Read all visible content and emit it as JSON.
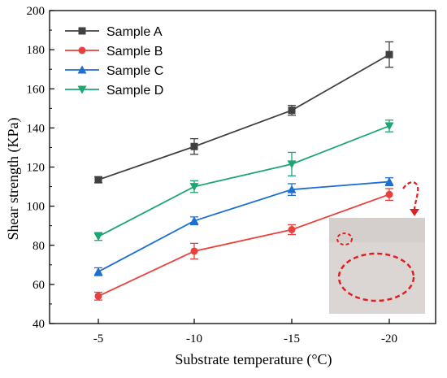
{
  "chart_data": {
    "type": "line",
    "xlabel": "Substrate temperature (°C)",
    "ylabel": "Shear strength (KPa)",
    "categories": [
      "-5",
      "-10",
      "-15",
      "-20"
    ],
    "ylim": [
      40,
      200
    ],
    "yticks": [
      40,
      60,
      80,
      100,
      120,
      140,
      160,
      180,
      200
    ],
    "legend_position": "top-left",
    "grid": false,
    "series": [
      {
        "name": "Sample A",
        "marker": "square",
        "color": "#404040",
        "values": [
          113.5,
          130.5,
          149,
          177.5
        ],
        "errors": [
          1.5,
          4,
          2.5,
          6.5
        ]
      },
      {
        "name": "Sample B",
        "marker": "circle",
        "color": "#e8413c",
        "values": [
          54,
          77,
          88,
          106
        ],
        "errors": [
          2,
          4,
          2.5,
          3
        ]
      },
      {
        "name": "Sample C",
        "marker": "triangle-up",
        "color": "#1f6fd1",
        "values": [
          66.5,
          92.5,
          108.5,
          112.5
        ],
        "errors": [
          2,
          2,
          3,
          2
        ]
      },
      {
        "name": "Sample D",
        "marker": "triangle-down",
        "color": "#1ea672",
        "values": [
          84.5,
          110,
          121.5,
          141
        ],
        "errors": [
          2,
          3,
          6,
          3
        ]
      }
    ]
  },
  "inset": {
    "description_icon": "ice-sample-photo",
    "background": "#d9d4d2",
    "annotation_color": "#e02020"
  }
}
